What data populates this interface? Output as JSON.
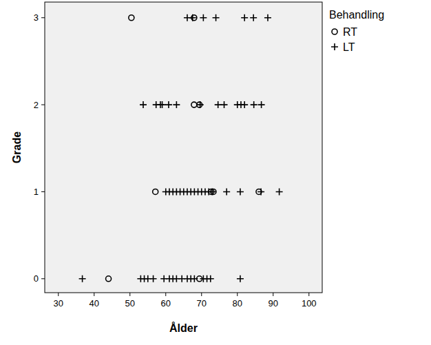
{
  "chart_data": {
    "type": "scatter",
    "x_label": "Ålder",
    "y_label": "Grade",
    "xlim": [
      26.2,
      103.7
    ],
    "ylim": [
      -0.16,
      3.18
    ],
    "xticks": [
      30,
      40,
      50,
      60,
      70,
      80,
      90,
      100
    ],
    "yticks": [
      0,
      1,
      2,
      3
    ],
    "grid": false,
    "legend": "right",
    "legend_title": "Behandling",
    "series": [
      {
        "name": "RT",
        "color": "#000000",
        "marker": "circle",
        "x": [
          50.4,
          67.9,
          67.9,
          69.4,
          57.1,
          72.7,
          73.3,
          86,
          44,
          69.4
        ],
        "values": [
          3,
          3,
          2,
          2,
          1,
          1,
          1,
          1,
          0,
          0
        ]
      },
      {
        "name": "LT",
        "color": "#000000",
        "marker": "plus",
        "x": [
          66,
          67.5,
          70.5,
          74,
          82,
          84.5,
          88.5,
          53.7,
          57.3,
          58.5,
          59,
          60.8,
          63,
          69.6,
          74.6,
          76.3,
          80,
          81,
          82,
          84.6,
          86.7,
          60,
          61,
          62,
          63,
          64,
          65,
          66,
          67,
          68,
          69,
          70,
          71,
          72,
          73,
          77,
          80.8,
          86.6,
          91.7,
          36.7,
          53,
          54,
          55,
          56.5,
          59.5,
          61,
          62,
          63,
          64.5,
          66,
          67,
          68,
          70.5,
          71.5,
          72.5,
          80.8
        ],
        "values": [
          3,
          3,
          3,
          3,
          3,
          3,
          3,
          2,
          2,
          2,
          2,
          2,
          2,
          2,
          2,
          2,
          2,
          2,
          2,
          2,
          2,
          1,
          1,
          1,
          1,
          1,
          1,
          1,
          1,
          1,
          1,
          1,
          1,
          1,
          1,
          1,
          1,
          1,
          1,
          0,
          0,
          0,
          0,
          0,
          0,
          0,
          0,
          0,
          0,
          0,
          0,
          0,
          0,
          0,
          0,
          0
        ]
      }
    ]
  }
}
